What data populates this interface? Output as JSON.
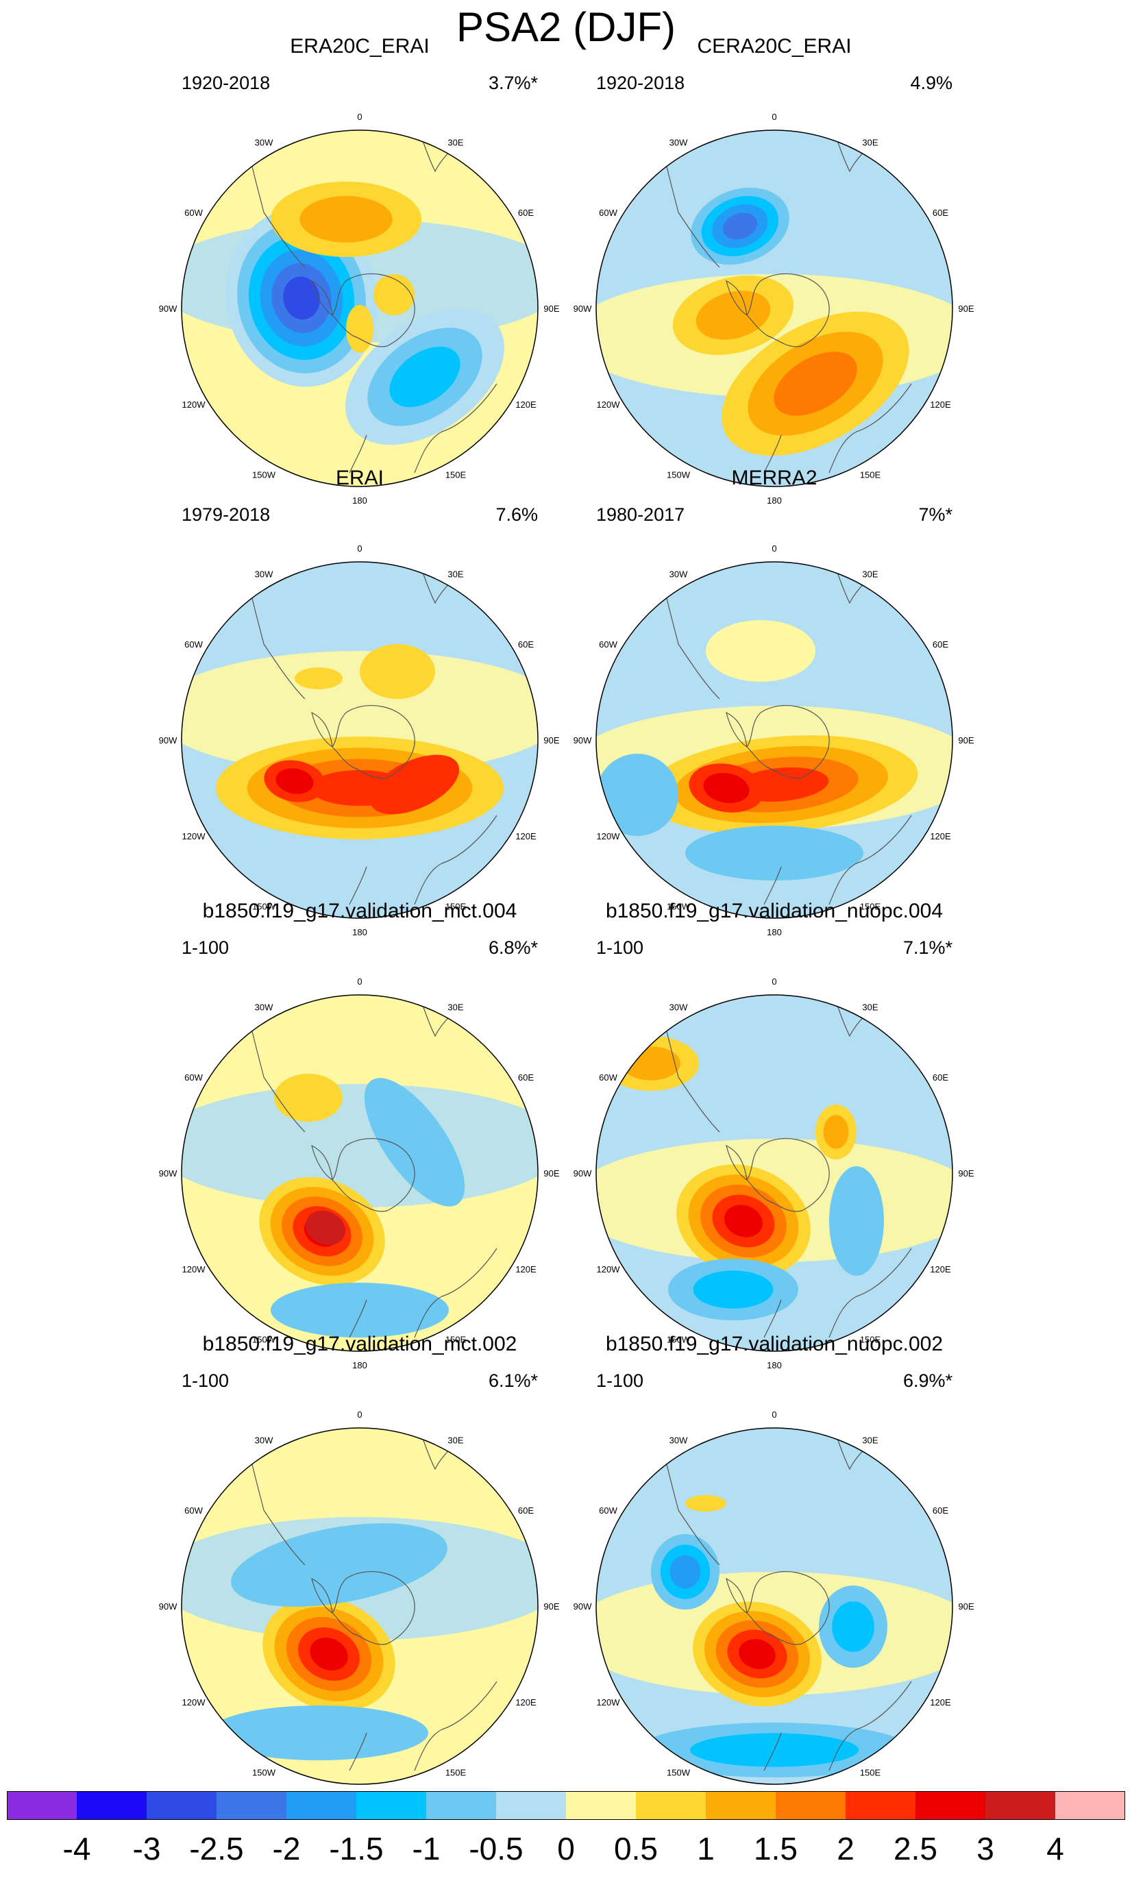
{
  "title": "PSA2 (DJF)",
  "panels": [
    {
      "title": "ERA20C_ERAI",
      "period": "1920-2018",
      "pct": "3.7%*"
    },
    {
      "title": "CERA20C_ERAI",
      "period": "1920-2018",
      "pct": "4.9%"
    },
    {
      "title": "ERAI",
      "period": "1979-2018",
      "pct": "7.6%"
    },
    {
      "title": "MERRA2",
      "period": "1980-2017",
      "pct": "7%*"
    },
    {
      "title": "b1850.f19_g17.validation_mct.004",
      "period": "1-100",
      "pct": "6.8%*"
    },
    {
      "title": "b1850.f19_g17.validation_nuopc.004",
      "period": "1-100",
      "pct": "7.1%*"
    },
    {
      "title": "b1850.f19_g17.validation_mct.002",
      "period": "1-100",
      "pct": "6.1%*"
    },
    {
      "title": "b1850.f19_g17.validation_nuopc.002",
      "period": "1-100",
      "pct": "6.9%*"
    }
  ],
  "longitude_labels": [
    "0",
    "30E",
    "60E",
    "90E",
    "120E",
    "150E",
    "180",
    "150W",
    "120W",
    "90W",
    "60W",
    "30W"
  ],
  "colorbar": {
    "colors": [
      "#8a2be2",
      "#1a0af5",
      "#2e4be6",
      "#3c77ea",
      "#239cf5",
      "#00c3ff",
      "#6dc8f2",
      "#b4def1",
      "#fef8a2",
      "#fdd632",
      "#fdac07",
      "#ff7a00",
      "#ff2d00",
      "#ef0000",
      "#cc1c1c",
      "#fcb4b4"
    ],
    "tick_labels": [
      "-4",
      "-3",
      "-2.5",
      "-2",
      "-1.5",
      "-1",
      "-0.5",
      "0",
      "0.5",
      "1",
      "1.5",
      "2",
      "2.5",
      "3",
      "4"
    ]
  }
}
